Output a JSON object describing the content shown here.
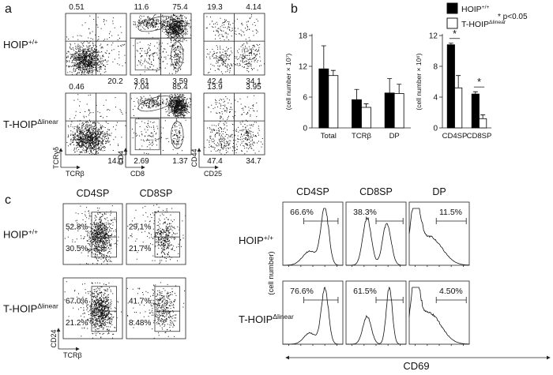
{
  "genotypes": [
    {
      "base": "HOIP",
      "sup": "+/+"
    },
    {
      "base": "T-HOIP",
      "sup": "Δlinear"
    }
  ],
  "panel_a": {
    "letter": "a",
    "rows": [
      {
        "plots": [
          {
            "tl": "0.51",
            "br": "20.2"
          },
          {
            "tl": "11.6",
            "tr": "75.4",
            "bl": "3.61",
            "br": "3.59"
          },
          {
            "tl": "19.3",
            "tr": "4.14",
            "bl": "42.4",
            "br": "34.1"
          }
        ]
      },
      {
        "plots": [
          {
            "tl": "0.46",
            "br": "14.0"
          },
          {
            "tl": "7.04",
            "tr": "85.4",
            "bl": "2.69",
            "br": "1.37"
          },
          {
            "tl": "13.9",
            "tr": "3.95",
            "bl": "47.4",
            "br": "34.7"
          }
        ]
      }
    ],
    "axes": [
      {
        "y": "TCRγδ",
        "x": "TCRβ"
      },
      {
        "y": "CD4",
        "x": "CD8"
      },
      {
        "y": "CD44",
        "x": "CD25"
      }
    ]
  },
  "panel_b": {
    "letter": "b"
  },
  "chart_data": [
    {
      "type": "bar",
      "categories": [
        "Total",
        "TCRβ",
        "DP"
      ],
      "series": [
        {
          "name": {
            "base": "HOIP",
            "sup": "+/+"
          },
          "color": "#000000",
          "values": [
            11.5,
            5.5,
            6.8
          ],
          "errors": [
            4.5,
            2.0,
            2.8
          ]
        },
        {
          "name": {
            "base": "T-HOIP",
            "sup": "Δlinear"
          },
          "color": "#ffffff",
          "values": [
            10.2,
            4.0,
            6.7
          ],
          "errors": [
            1.0,
            0.7,
            1.8
          ]
        }
      ],
      "ylim": [
        0,
        18
      ],
      "yticks": [
        0,
        6,
        12,
        18
      ],
      "y_label": "(cell number × 10⁷)"
    },
    {
      "type": "bar",
      "categories": [
        "CD4SP",
        "CD8SP"
      ],
      "series": [
        {
          "color": "#000000",
          "values": [
            10.8,
            4.4
          ],
          "errors": [
            0.2,
            0.3
          ]
        },
        {
          "color": "#ffffff",
          "values": [
            5.2,
            1.2
          ],
          "errors": [
            1.6,
            0.5
          ]
        }
      ],
      "ylim": [
        0,
        12
      ],
      "yticks": [
        0,
        4,
        8,
        12
      ],
      "y_label": "(cell number × 10⁶)",
      "annotations": [
        "*",
        "*"
      ],
      "note": "* p<0.05"
    }
  ],
  "panel_c": {
    "letter": "c",
    "left": {
      "columns": [
        "CD4SP",
        "CD8SP"
      ],
      "rows": [
        [
          {
            "upper": "52.8%",
            "lower": "30.5%"
          },
          {
            "upper": "29.1%",
            "lower": "21.7%"
          }
        ],
        [
          {
            "upper": "67.0%",
            "lower": "21.2%"
          },
          {
            "upper": "41.7%",
            "lower": "8.48%"
          }
        ]
      ],
      "y_axis": "CD24",
      "x_axis": "TCRβ"
    },
    "right": {
      "columns": [
        "CD4SP",
        "CD8SP",
        "DP"
      ],
      "rows": [
        [
          "66.6%",
          "38.3%",
          "11.5%"
        ],
        [
          "76.6%",
          "61.5%",
          "4.50%"
        ]
      ],
      "y_axis": "(cell number)",
      "x_axis": "CD69"
    }
  }
}
